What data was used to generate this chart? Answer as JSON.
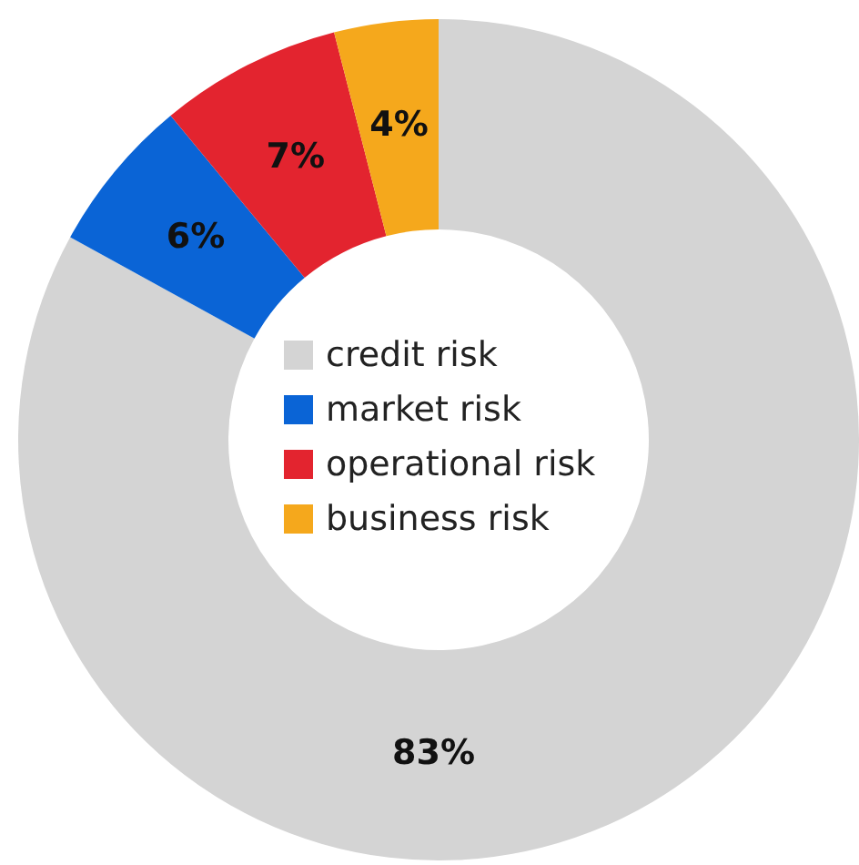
{
  "chart_data": {
    "type": "donut",
    "categories": [
      "credit risk",
      "market risk",
      "operational risk",
      "business risk"
    ],
    "values": [
      83,
      6,
      7,
      4
    ],
    "colors": [
      "#d4d4d4",
      "#0a64d6",
      "#e3242f",
      "#f5a81c"
    ],
    "value_labels": [
      "83%",
      "6%",
      "7%",
      "4%"
    ],
    "legend": "center"
  }
}
